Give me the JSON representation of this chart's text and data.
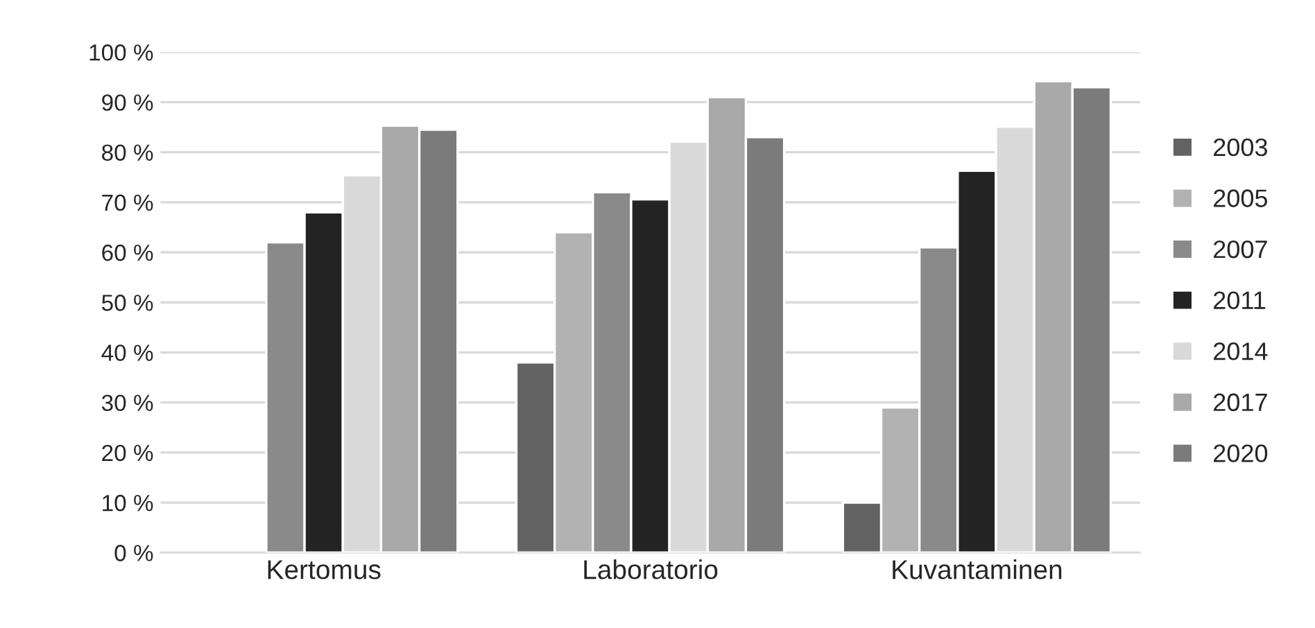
{
  "chart_data": {
    "type": "bar",
    "categories": [
      "Kertomus",
      "Laboratorio",
      "Kuvantaminen"
    ],
    "series": [
      {
        "name": "2003",
        "color": "#636363",
        "values": [
          null,
          38,
          10
        ]
      },
      {
        "name": "2005",
        "color": "#b2b2b2",
        "values": [
          null,
          64,
          29
        ]
      },
      {
        "name": "2007",
        "color": "#8a8a8a",
        "values": [
          62,
          72,
          61
        ]
      },
      {
        "name": "2011",
        "color": "#232323",
        "values": [
          68,
          70.6,
          76.3
        ]
      },
      {
        "name": "2014",
        "color": "#d9d9d9",
        "values": [
          75.4,
          82.1,
          85.1
        ]
      },
      {
        "name": "2017",
        "color": "#a9a9a9",
        "values": [
          85.3,
          91,
          94.2
        ]
      },
      {
        "name": "2020",
        "color": "#7b7b7b",
        "values": [
          84.5,
          83,
          93
        ]
      }
    ],
    "ylim": [
      0,
      100
    ],
    "yticks": [
      {
        "value": 0,
        "label": "0 %"
      },
      {
        "value": 10,
        "label": "10 %"
      },
      {
        "value": 20,
        "label": "20 %"
      },
      {
        "value": 30,
        "label": "30 %"
      },
      {
        "value": 40,
        "label": "40 %"
      },
      {
        "value": 50,
        "label": "50 %"
      },
      {
        "value": 60,
        "label": "60 %"
      },
      {
        "value": 70,
        "label": "70 %"
      },
      {
        "value": 80,
        "label": "80 %"
      },
      {
        "value": 90,
        "label": "90 %"
      },
      {
        "value": 100,
        "label": "100 %"
      }
    ],
    "grid": "y",
    "legend": "right"
  }
}
